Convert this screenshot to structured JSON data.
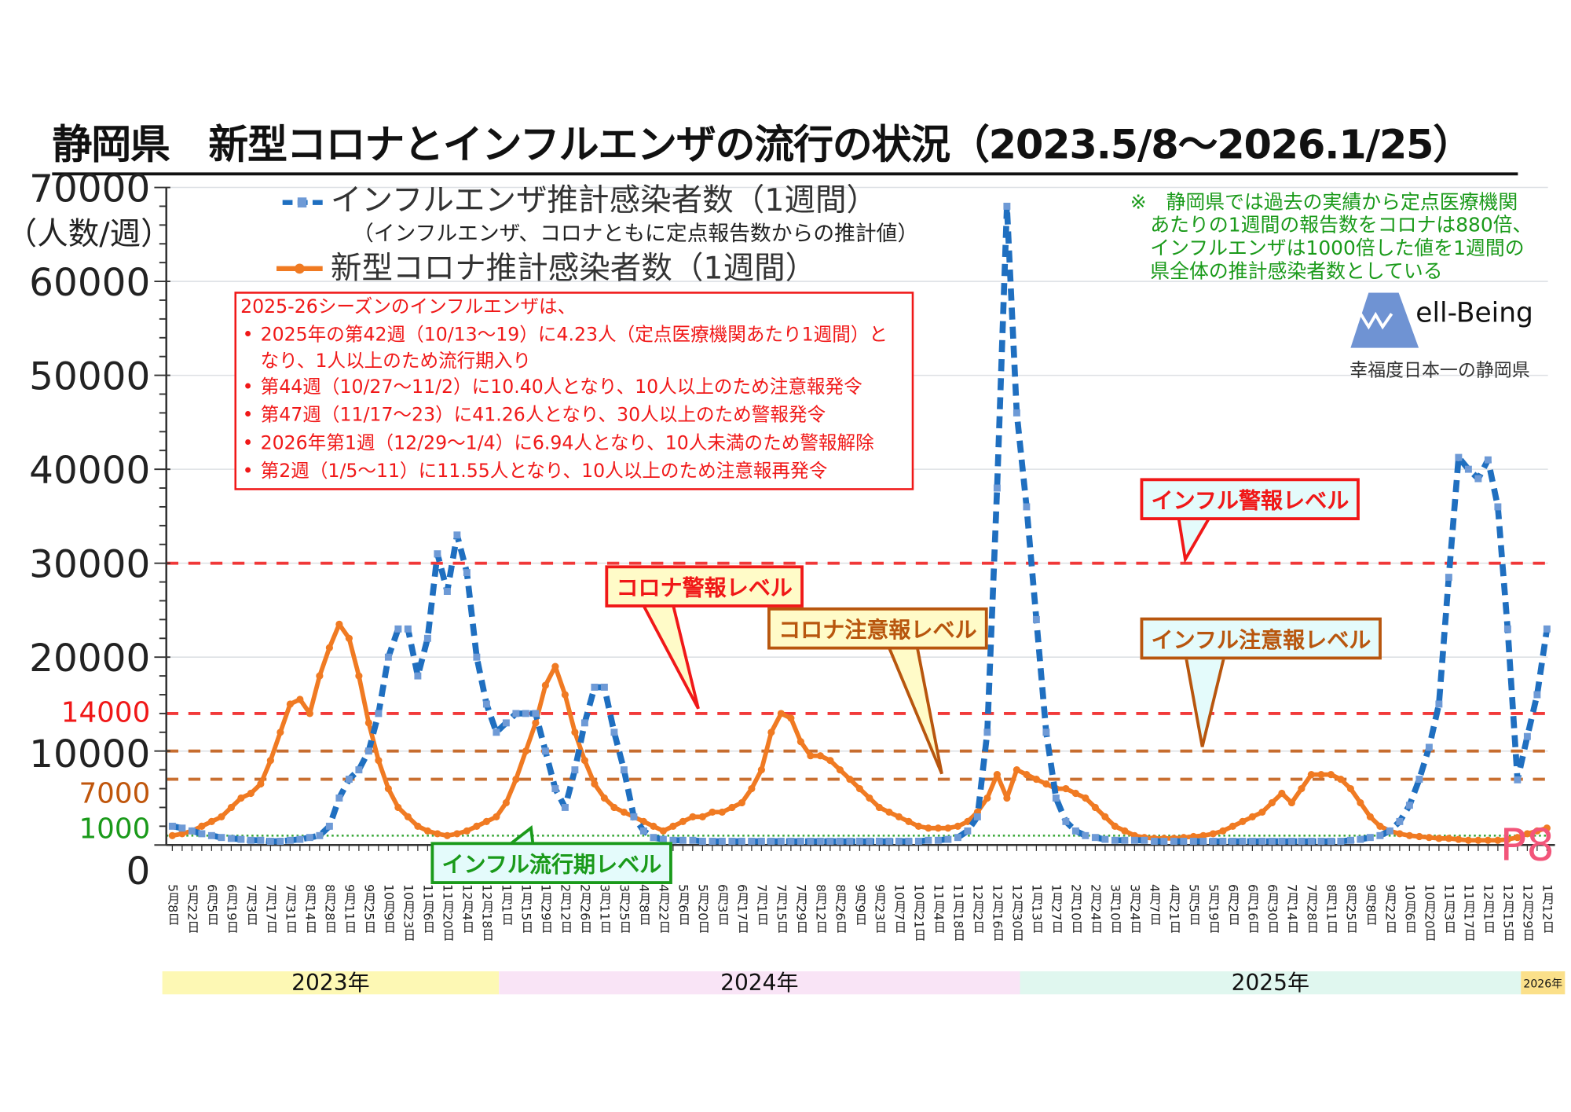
{
  "title": "静岡県　新型コロナとインフルエンザの流行の状況（2023.5/8～2026.1/25）",
  "y_unit_label": "（人数/週）",
  "legend": {
    "flu": "インフルエンザ推計感染者数（1週間）",
    "note": "（インフルエンザ、コロナともに定点報告数からの推計値）",
    "covid": "新型コロナ推計感染者数（1週間）"
  },
  "info_box": {
    "heading": "2025-26シーズンのインフルエンザは、",
    "bullets": [
      "2025年の第42週（10/13～19）に4.23人（定点医療機関あたり1週間）と",
      "第44週（10/27～11/2）に10.40人となり、10人以上のため注意報発令",
      "第47週（11/17～23）に41.26人となり、30人以上のため警報発令",
      "2026年第1週（12/29～1/4）に6.94人となり、10人未満のため警報解除",
      "第2週（1/5～11）に11.55人となり、10人以上のため注意報再発令"
    ],
    "bullet1_cont": "なり、1人以上のため流行期入り"
  },
  "method_note": [
    "※　静岡県では過去の実績から定点医療機関",
    "あたりの1週間の報告数をコロナは880倍、",
    "インフルエンザは1000倍した値を1週間の",
    "県全体の推計感染者数としている"
  ],
  "logo": {
    "wordmark": "ell-Being",
    "full_name": "Well-Being",
    "tagline": "幸福度日本一の静岡県",
    "color": "#6f93d3"
  },
  "page_number": "P8",
  "callouts": {
    "covid_alarm": "コロナ警報レベル",
    "covid_advisory": "コロナ注意報レベル",
    "flu_alarm": "インフル警報レベル",
    "flu_advisory": "インフル注意報レベル",
    "flu_epidemic": "インフル流行期レベル"
  },
  "years": [
    "2023年",
    "2024年",
    "2025年",
    "2026年"
  ],
  "chart_data": {
    "type": "line",
    "x_interval": "weekly",
    "x_tick_labels": [
      "5月8日",
      "5月22日",
      "6月5日",
      "6月19日",
      "7月3日",
      "7月17日",
      "7月31日",
      "8月14日",
      "8月28日",
      "9月11日",
      "9月25日",
      "10月9日",
      "10月23日",
      "11月6日",
      "11月20日",
      "12月4日",
      "12月18日",
      "1月1日",
      "1月15日",
      "1月29日",
      "2月12日",
      "2月26日",
      "3月11日",
      "3月25日",
      "4月8日",
      "4月22日",
      "5月6日",
      "5月20日",
      "6月3日",
      "6月17日",
      "7月1日",
      "7月15日",
      "7月29日",
      "8月12日",
      "8月26日",
      "9月9日",
      "9月23日",
      "10月7日",
      "10月21日",
      "11月4日",
      "11月18日",
      "12月2日",
      "12月16日",
      "12月30日",
      "1月13日",
      "1月27日",
      "2月10日",
      "2月24日",
      "3月10日",
      "3月24日",
      "4月7日",
      "4月21日",
      "5月5日",
      "5月19日",
      "6月2日",
      "6月16日",
      "6月30日",
      "7月14日",
      "7月28日",
      "8月11日",
      "8月25日",
      "9月8日",
      "9月22日",
      "10月6日",
      "10月20日",
      "11月3日",
      "11月17日",
      "12月1日",
      "12月15日",
      "12月29日",
      "1月12日"
    ],
    "ylim": [
      0,
      70000
    ],
    "yticks": [
      0,
      10000,
      20000,
      30000,
      40000,
      50000,
      60000,
      70000
    ],
    "yticks_extra": [
      {
        "value": 14000,
        "label": "14000",
        "color": "#f01818"
      },
      {
        "value": 7000,
        "label": "7000",
        "color": "#c0560c"
      },
      {
        "value": 1000,
        "label": "1000",
        "color": "#1a9a1a"
      }
    ],
    "grid": true,
    "legend_position": "top-left",
    "reference_lines": [
      {
        "value": 30000,
        "label": "インフル警報レベル",
        "color": "#f01818",
        "style": "dashed"
      },
      {
        "value": 14000,
        "label": "コロナ警報レベル",
        "color": "#f01818",
        "style": "dashed"
      },
      {
        "value": 10000,
        "label": "インフル注意報レベル",
        "color": "#c0560c",
        "style": "dashed"
      },
      {
        "value": 7000,
        "label": "コロナ注意報レベル",
        "color": "#c0560c",
        "style": "dashed"
      },
      {
        "value": 1000,
        "label": "インフル流行期レベル",
        "color": "#1a9a1a",
        "style": "dotted"
      }
    ],
    "series": [
      {
        "name": "インフルエンザ推計感染者数（1週間）",
        "color": "#1f6fc0",
        "style": "dashed",
        "marker": "square",
        "values": [
          2000,
          1800,
          1500,
          1200,
          1000,
          800,
          700,
          600,
          500,
          500,
          400,
          400,
          500,
          600,
          800,
          1000,
          2000,
          5000,
          7000,
          8000,
          10000,
          14000,
          20000,
          23000,
          23000,
          18000,
          22000,
          31000,
          27000,
          33000,
          29000,
          20000,
          15000,
          12000,
          13000,
          14000,
          14000,
          14000,
          10000,
          6000,
          4000,
          8000,
          13000,
          16800,
          16800,
          12000,
          8000,
          3000,
          1500,
          800,
          600,
          500,
          500,
          500,
          400,
          400,
          400,
          400,
          400,
          400,
          400,
          400,
          400,
          400,
          400,
          400,
          400,
          400,
          400,
          400,
          400,
          400,
          400,
          400,
          400,
          400,
          400,
          500,
          500,
          600,
          800,
          1500,
          3000,
          12000,
          38000,
          68000,
          46000,
          36000,
          24000,
          12000,
          5000,
          2500,
          1500,
          1000,
          800,
          600,
          500,
          500,
          500,
          500,
          400,
          400,
          400,
          400,
          400,
          400,
          400,
          400,
          400,
          400,
          400,
          400,
          400,
          400,
          400,
          400,
          400,
          400,
          400,
          400,
          500,
          600,
          800,
          1000,
          1500,
          2500,
          4230,
          7000,
          10400,
          15000,
          28500,
          41260,
          40000,
          39000,
          41000,
          36000,
          23000,
          6940,
          11550,
          16000,
          23000
        ]
      },
      {
        "name": "新型コロナ推計感染者数（1週間）",
        "color": "#f07a22",
        "style": "solid",
        "marker": "circle",
        "values": [
          1000,
          1200,
          1500,
          2000,
          2500,
          3000,
          4000,
          5000,
          5500,
          6500,
          9000,
          12000,
          15000,
          15500,
          14000,
          18000,
          21000,
          23500,
          22000,
          18000,
          13000,
          9000,
          6000,
          4000,
          3000,
          2000,
          1500,
          1200,
          1000,
          1200,
          1500,
          2000,
          2500,
          3000,
          4500,
          7000,
          10000,
          13000,
          17000,
          19000,
          16000,
          12000,
          9000,
          6500,
          5000,
          4000,
          3500,
          3000,
          2500,
          2000,
          1500,
          2000,
          2500,
          3000,
          3000,
          3500,
          3500,
          4000,
          4500,
          6000,
          8000,
          12000,
          14000,
          13500,
          11000,
          9500,
          9500,
          9000,
          8000,
          7000,
          6000,
          5000,
          4000,
          3500,
          3000,
          2500,
          2000,
          1800,
          1800,
          1800,
          2000,
          2500,
          3500,
          5000,
          7500,
          5000,
          8000,
          7500,
          7000,
          6500,
          6000,
          6000,
          5500,
          5000,
          4000,
          3000,
          2000,
          1500,
          1000,
          800,
          700,
          700,
          700,
          800,
          900,
          1000,
          1200,
          1500,
          2000,
          2500,
          3000,
          3500,
          4500,
          5500,
          4500,
          6000,
          7500,
          7500,
          7500,
          7000,
          6000,
          4500,
          3000,
          2000,
          1500,
          1200,
          1000,
          900,
          800,
          700,
          700,
          600,
          500,
          500,
          500,
          500,
          600,
          800,
          1200,
          1500,
          1800
        ]
      }
    ]
  }
}
